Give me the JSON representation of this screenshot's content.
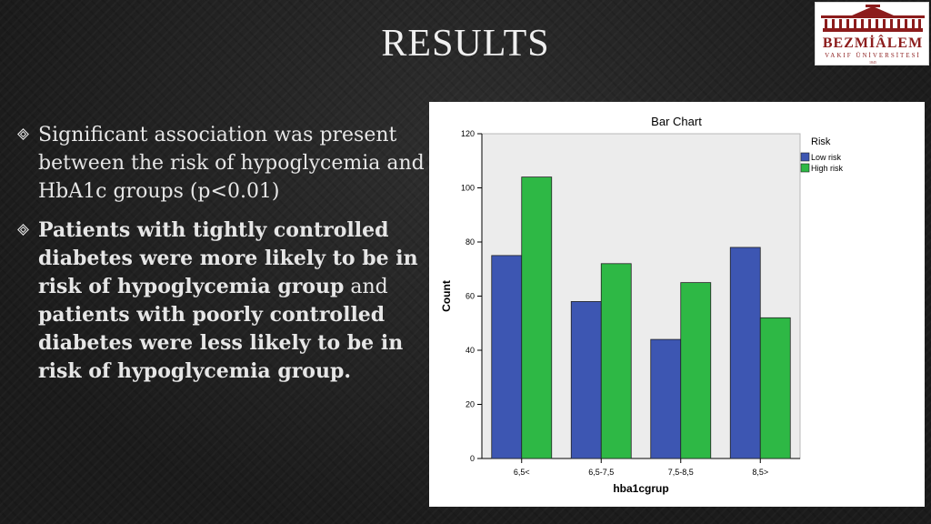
{
  "slide": {
    "title": "RESULTS",
    "bullets": [
      {
        "parts": [
          {
            "text": "Significant association was present between the risk of hypoglycemia and HbA1c groups (p<0.01)",
            "bold": false
          }
        ]
      },
      {
        "parts": [
          {
            "text": "Patients with tightly controlled diabetes were more likely to be in risk of hypoglycemia group",
            "bold": true
          },
          {
            "text": " and ",
            "bold": false
          },
          {
            "text": "patients with poorly controlled diabetes were less likely to be in risk of hypoglycemia group.",
            "bold": true
          }
        ]
      }
    ]
  },
  "logo": {
    "brand": "BEZMİÂLEM",
    "subtitle": "VAKIF ÜNİVERSİTESİ",
    "year": "1845"
  },
  "colors": {
    "low_risk": "#3d56b2",
    "high_risk": "#2eb845",
    "plot_bg": "#ececec",
    "brand": "#8c1c1c"
  },
  "chart_data": {
    "type": "bar",
    "title": "Bar Chart",
    "xlabel": "hba1cgrup",
    "ylabel": "Count",
    "categories": [
      "6,5<",
      "6,5-7,5",
      "7,5-8,5",
      "8,5>"
    ],
    "series": [
      {
        "name": "Low risk",
        "color": "#3d56b2",
        "values": [
          75,
          58,
          44,
          78
        ]
      },
      {
        "name": "High risk",
        "color": "#2eb845",
        "values": [
          104,
          72,
          65,
          52
        ]
      }
    ],
    "ylim": [
      0,
      120
    ],
    "yticks": [
      0,
      20,
      40,
      60,
      80,
      100,
      120
    ],
    "legend_title": "Risk",
    "legend_position": "right",
    "grid": false
  }
}
